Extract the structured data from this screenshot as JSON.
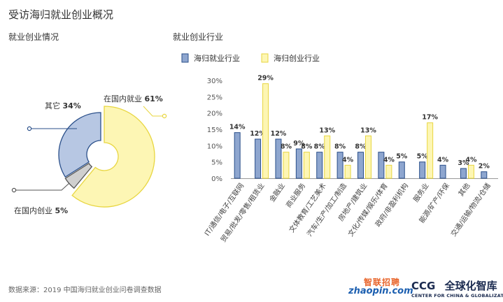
{
  "header": {
    "title": "受访海归就业创业概况",
    "pie_title": "就业创业情况",
    "bar_title": "就业创业行业"
  },
  "chart_data": [
    {
      "type": "pie",
      "title": "就业创业情况",
      "slices": [
        {
          "name": "在国内就业",
          "value": 61,
          "label": "61%",
          "color": "#fdf6b4",
          "stroke": "#e8d640"
        },
        {
          "name": "在国内创业",
          "value": 5,
          "label": "5%",
          "color": "#cfcfcf",
          "stroke": "#555555"
        },
        {
          "name": "其它",
          "value": 34,
          "label": "34%",
          "color": "#b7c7e3",
          "stroke": "#2a4f8a"
        }
      ]
    },
    {
      "type": "bar",
      "title": "就业创业行业",
      "categories": [
        "IT/通信/电子/互联网",
        "贸易/批发/零售/租赁业",
        "金融业",
        "商业服务",
        "文体教育/工艺美术",
        "汽车/生产/加工/制造",
        "房地产/建筑业",
        "文化/传媒/娱乐/体育",
        "政府/非盈利机构",
        "服务业",
        "能源/矿产/环保",
        "其他",
        "交通/运输/物流/仓储"
      ],
      "series": [
        {
          "name": "海归就业行业",
          "color": "#8ea6cf",
          "stroke": "#2a4f8a",
          "values": [
            14,
            12,
            12,
            9,
            8,
            8,
            8,
            8,
            5,
            5,
            4,
            3,
            2
          ],
          "labels": [
            "14%",
            "12%",
            "12%",
            "9%",
            "8%",
            "8%",
            "8%",
            "",
            "5%",
            "5%",
            "4%",
            "3%",
            "2%"
          ]
        },
        {
          "name": "海归创业行业",
          "color": "#fdf6b4",
          "stroke": "#e8d640",
          "values": [
            null,
            29,
            8,
            8,
            13,
            4,
            13,
            4,
            null,
            17,
            null,
            4,
            null
          ],
          "labels": [
            "",
            "29%",
            "8%",
            "8%",
            "13%",
            "4%",
            "13%",
            "4%",
            "",
            "17%",
            "",
            "4%",
            ""
          ]
        }
      ],
      "yticks": [
        "0%",
        "5%",
        "10%",
        "15%",
        "20%",
        "25%",
        "30%"
      ],
      "ylim": [
        0,
        30
      ]
    }
  ],
  "footer": {
    "source": "数据来源：2019 中国海归就业创业问卷调查数据",
    "logo_zhaopin_cn": "智联招聘",
    "logo_zhaopin_en": "zhaopin.com",
    "logo_ccg_en": "CCG",
    "logo_ccg_cn": "全球化智库",
    "logo_ccg_sub": "CENTER FOR CHINA & GLOBALIZATION"
  }
}
